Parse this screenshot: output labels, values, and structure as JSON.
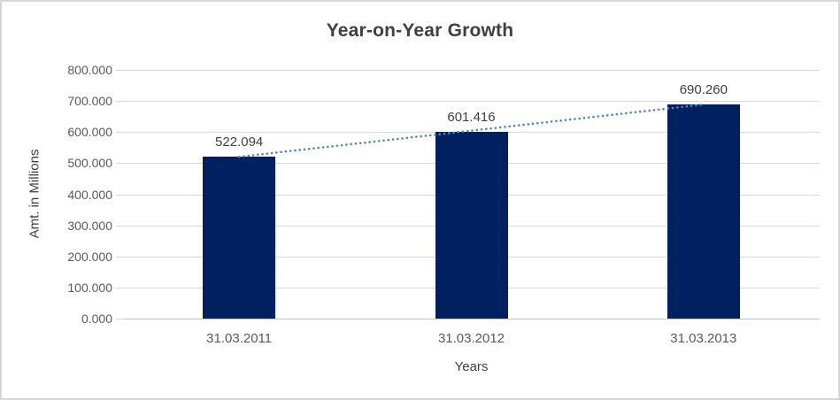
{
  "title": "Year-on-Year Growth",
  "chart_data": {
    "type": "bar",
    "title": "Year-on-Year Growth",
    "categories": [
      "31.03.2011",
      "31.03.2012",
      "31.03.2013"
    ],
    "values": [
      522.094,
      601.416,
      690.26
    ],
    "data_labels": [
      "522.094",
      "601.416",
      "690.260"
    ],
    "xlabel": "Years",
    "ylabel": "Amt. in Millions",
    "ylim": [
      0,
      800
    ],
    "ytick_step": 100,
    "yticks": [
      "800.000",
      "700.000",
      "600.000",
      "500.000",
      "400.000",
      "300.000",
      "200.000",
      "100.000",
      "0.000"
    ],
    "grid": true,
    "legend": "none",
    "bar_color": "#002060",
    "gridline_color": "#d9d9d9",
    "trendline": {
      "type": "linear",
      "style": "dotted",
      "color": "#4e86c8"
    }
  }
}
